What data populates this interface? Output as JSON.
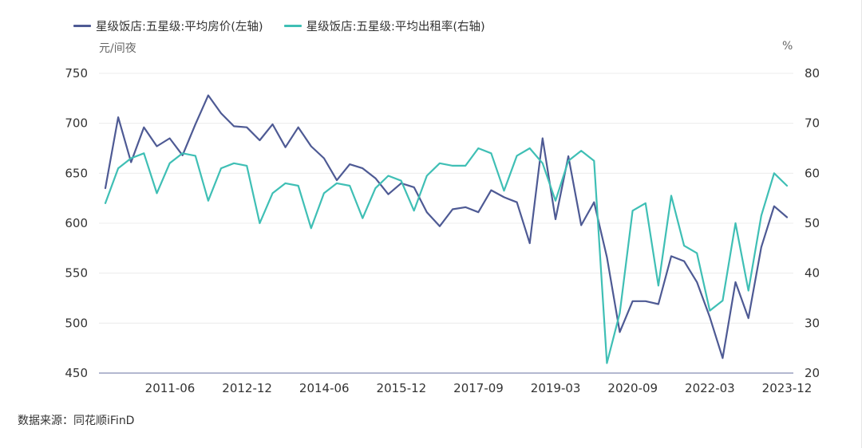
{
  "legend": {
    "left_series": "星级饭店:五星级:平均房价(左轴)",
    "right_series": "星级饭店:五星级:平均出租率(右轴)"
  },
  "units": {
    "left": "元/间夜",
    "right": "%"
  },
  "source": "数据来源：同花顺iFinD",
  "colors": {
    "left_series": "#4e5a94",
    "right_series": "#3fbfb5",
    "axis": "#9aa0c0",
    "grid": "#ececec",
    "tick_text": "#333333"
  },
  "chart_data": {
    "type": "line",
    "x_tick_labels": [
      "2011-06",
      "2012-12",
      "2014-06",
      "2015-12",
      "2017-09",
      "2019-03",
      "2020-09",
      "2022-03",
      "2023-12"
    ],
    "left_axis": {
      "ylim": [
        450,
        750
      ],
      "ticks": [
        750,
        700,
        650,
        600,
        550,
        500,
        450
      ]
    },
    "right_axis": {
      "ylim": [
        20,
        80
      ],
      "ticks": [
        80,
        70,
        60,
        50,
        40,
        30,
        20
      ]
    },
    "series": [
      {
        "name": "星级饭店:五星级:平均房价(左轴)",
        "axis": "left",
        "values": [
          635,
          706,
          661,
          696,
          677,
          685,
          668,
          699,
          728,
          710,
          697,
          696,
          683,
          699,
          676,
          696,
          677,
          665,
          643,
          659,
          655,
          645,
          629,
          640,
          636,
          611,
          597,
          614,
          616,
          611,
          633,
          626,
          621,
          580,
          685,
          604,
          667,
          598,
          621,
          566,
          491,
          522,
          522,
          519,
          567,
          562,
          541,
          506,
          465,
          541,
          505,
          576,
          617,
          606
        ]
      },
      {
        "name": "星级饭店:五星级:平均出租率(右轴)",
        "axis": "right",
        "values": [
          54,
          61,
          63,
          64,
          56,
          62,
          64,
          63.5,
          54.5,
          61,
          62,
          61.5,
          50,
          56,
          58,
          57.5,
          49,
          56,
          58,
          57.5,
          51,
          57,
          59.5,
          58.5,
          52.5,
          59.5,
          62,
          61.5,
          61.5,
          65,
          64,
          56.5,
          63.5,
          65,
          62,
          54.5,
          62.5,
          64.5,
          62.5,
          22,
          32,
          52.5,
          54,
          37.5,
          55.5,
          45.5,
          44,
          32.5,
          34.5,
          50,
          36.5,
          51.5,
          60,
          57.5
        ]
      }
    ]
  }
}
